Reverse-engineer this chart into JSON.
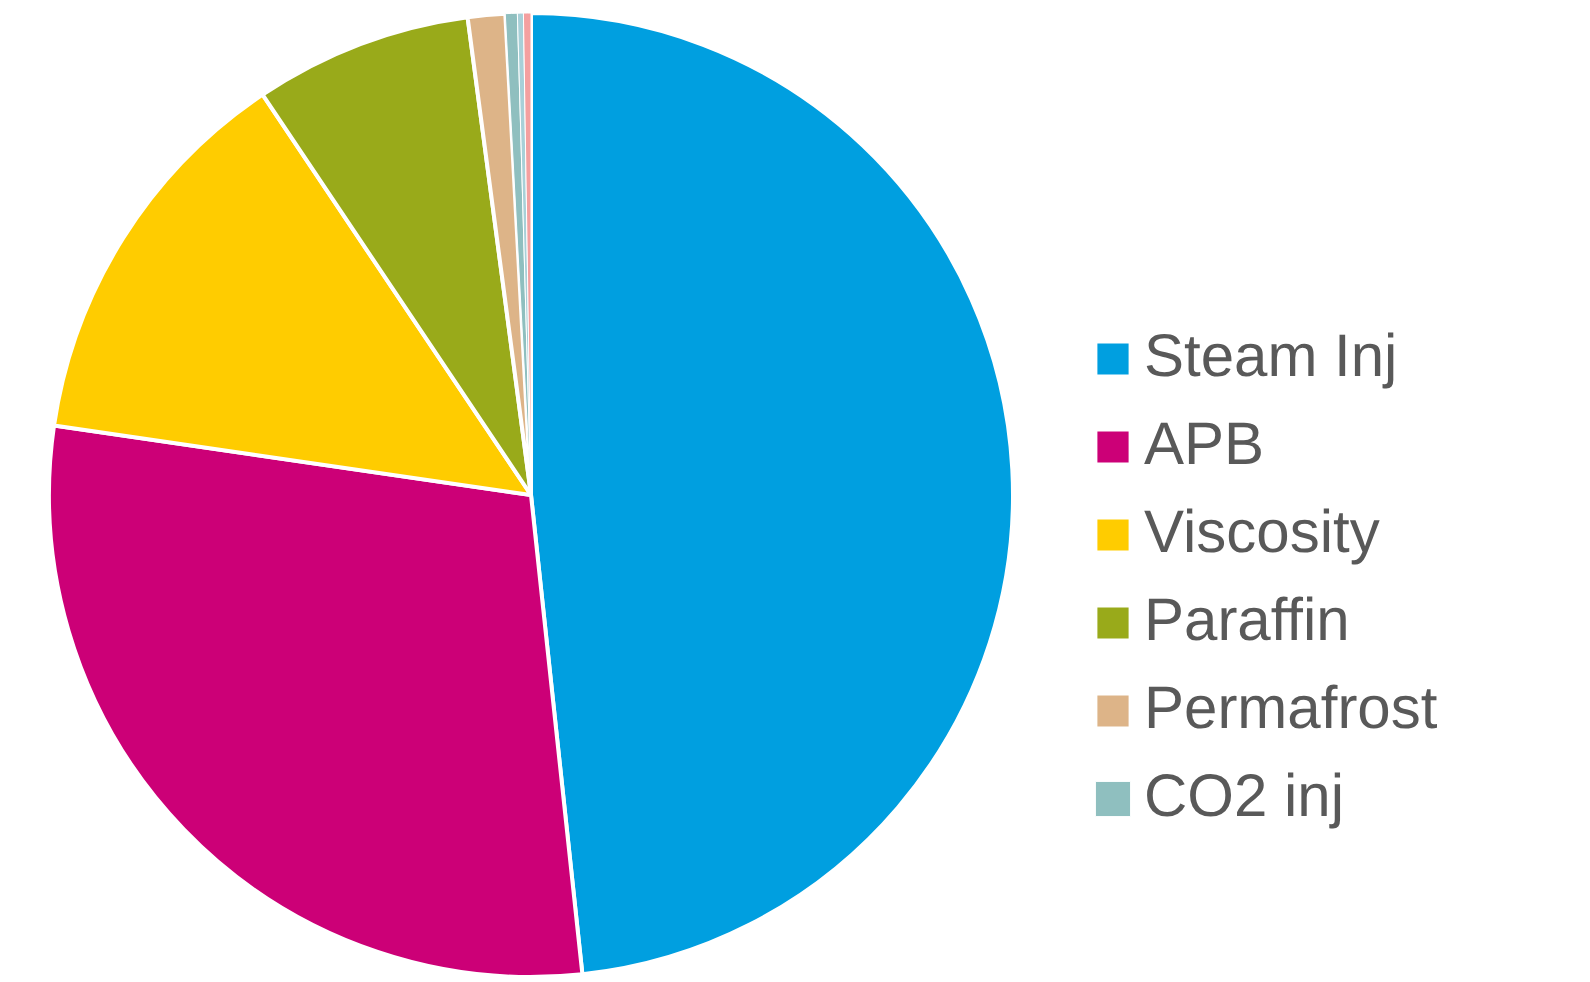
{
  "chart_data": {
    "type": "pie",
    "categories": [
      "Steam Inj",
      "APB",
      "Viscosity",
      "Paraffin",
      "Permafrost",
      "CO2 inj",
      null,
      null
    ],
    "values": [
      48.3,
      29.0,
      13.3,
      7.3,
      1.25,
      0.4,
      0.2,
      0.25
    ],
    "colors": [
      "#009fe0",
      "#cc0077",
      "#ffcc00",
      "#99aa1a",
      "#ddb488",
      "#8fbfbf",
      "#a8d0d8",
      "#f4a0a0"
    ],
    "legend": "right"
  }
}
